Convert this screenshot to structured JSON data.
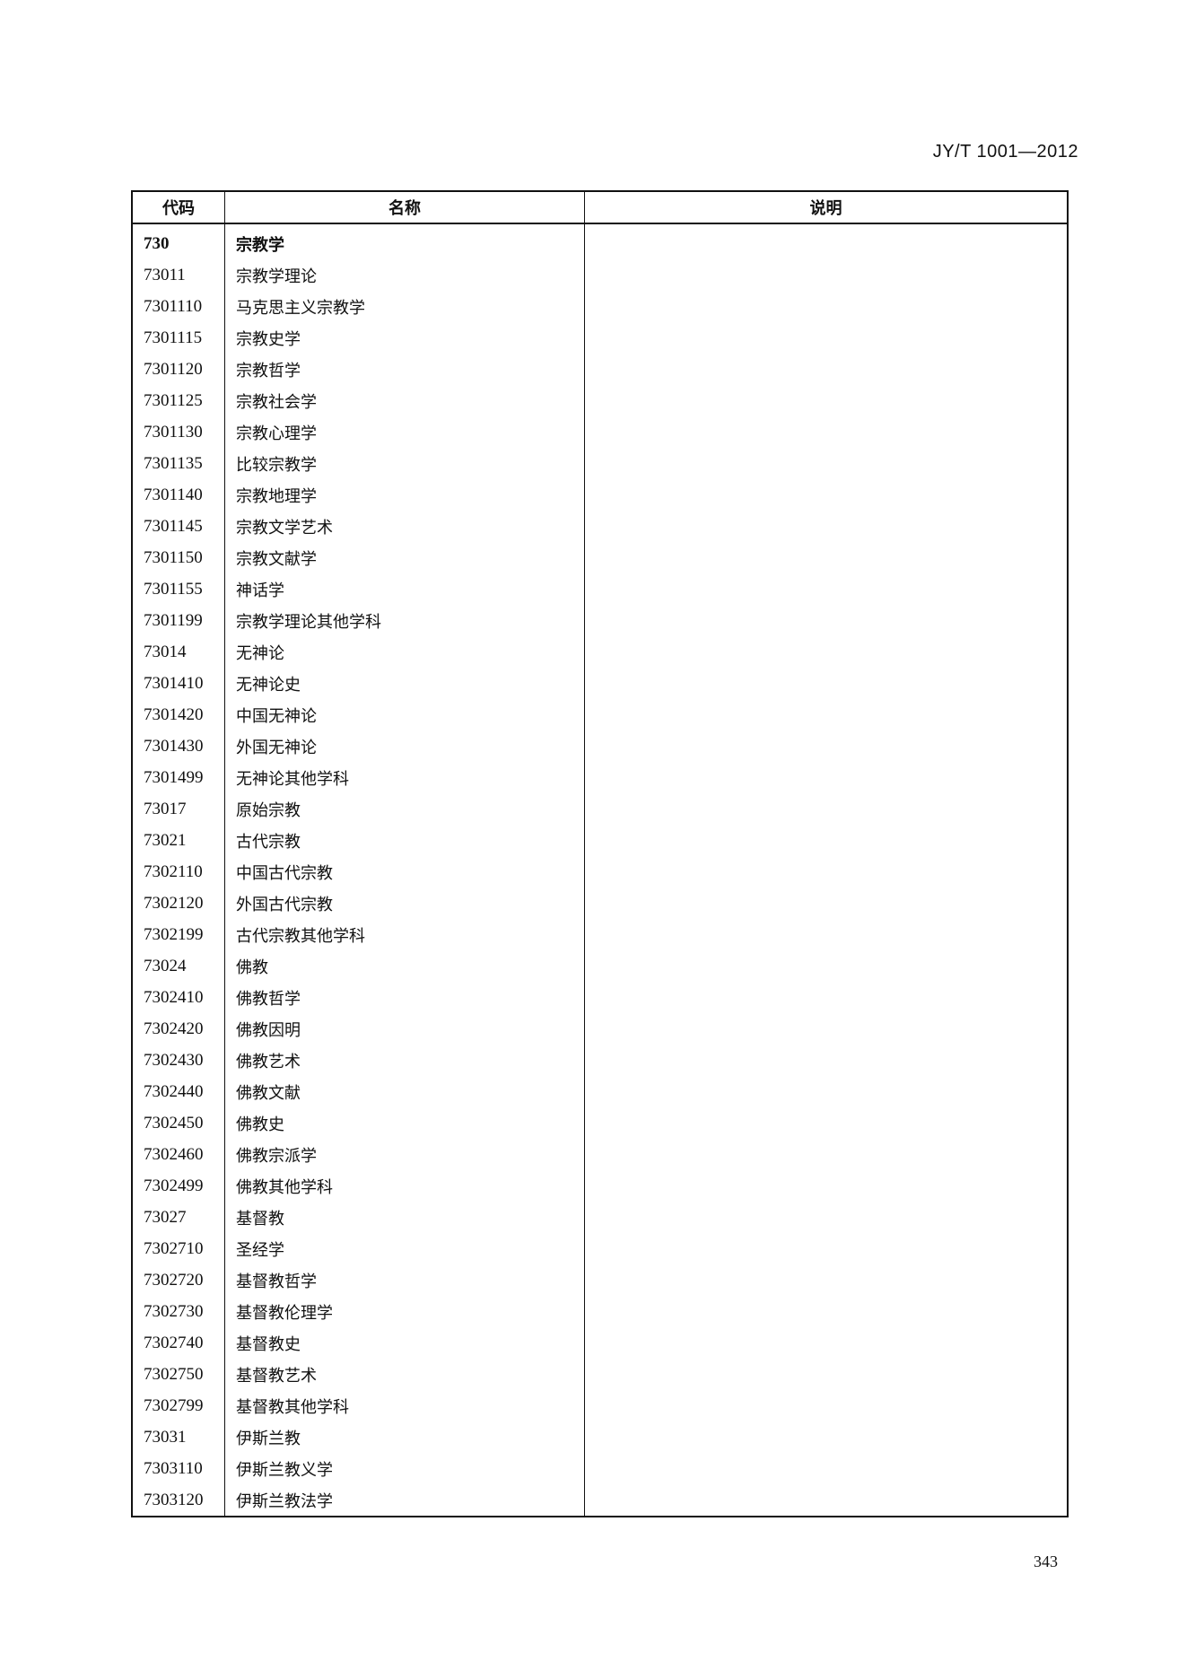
{
  "header": {
    "standard_number": "JY/T 1001—2012"
  },
  "table": {
    "columns": [
      "代码",
      "名称",
      "说明"
    ],
    "rows": [
      {
        "code": "730",
        "name": "宗教学",
        "note": "",
        "bold": true
      },
      {
        "code": "73011",
        "name": "宗教学理论",
        "note": ""
      },
      {
        "code": "7301110",
        "name": "马克思主义宗教学",
        "note": ""
      },
      {
        "code": "7301115",
        "name": "宗教史学",
        "note": ""
      },
      {
        "code": "7301120",
        "name": "宗教哲学",
        "note": ""
      },
      {
        "code": "7301125",
        "name": "宗教社会学",
        "note": ""
      },
      {
        "code": "7301130",
        "name": "宗教心理学",
        "note": ""
      },
      {
        "code": "7301135",
        "name": "比较宗教学",
        "note": ""
      },
      {
        "code": "7301140",
        "name": "宗教地理学",
        "note": ""
      },
      {
        "code": "7301145",
        "name": "宗教文学艺术",
        "note": ""
      },
      {
        "code": "7301150",
        "name": "宗教文献学",
        "note": ""
      },
      {
        "code": "7301155",
        "name": "神话学",
        "note": ""
      },
      {
        "code": "7301199",
        "name": "宗教学理论其他学科",
        "note": ""
      },
      {
        "code": "73014",
        "name": "无神论",
        "note": ""
      },
      {
        "code": "7301410",
        "name": "无神论史",
        "note": ""
      },
      {
        "code": "7301420",
        "name": "中国无神论",
        "note": ""
      },
      {
        "code": "7301430",
        "name": "外国无神论",
        "note": ""
      },
      {
        "code": "7301499",
        "name": "无神论其他学科",
        "note": ""
      },
      {
        "code": "73017",
        "name": "原始宗教",
        "note": ""
      },
      {
        "code": "73021",
        "name": "古代宗教",
        "note": ""
      },
      {
        "code": "7302110",
        "name": "中国古代宗教",
        "note": ""
      },
      {
        "code": "7302120",
        "name": "外国古代宗教",
        "note": ""
      },
      {
        "code": "7302199",
        "name": "古代宗教其他学科",
        "note": ""
      },
      {
        "code": "73024",
        "name": "佛教",
        "note": ""
      },
      {
        "code": "7302410",
        "name": "佛教哲学",
        "note": ""
      },
      {
        "code": "7302420",
        "name": "佛教因明",
        "note": ""
      },
      {
        "code": "7302430",
        "name": "佛教艺术",
        "note": ""
      },
      {
        "code": "7302440",
        "name": "佛教文献",
        "note": ""
      },
      {
        "code": "7302450",
        "name": "佛教史",
        "note": ""
      },
      {
        "code": "7302460",
        "name": "佛教宗派学",
        "note": ""
      },
      {
        "code": "7302499",
        "name": "佛教其他学科",
        "note": ""
      },
      {
        "code": "73027",
        "name": "基督教",
        "note": ""
      },
      {
        "code": "7302710",
        "name": "圣经学",
        "note": ""
      },
      {
        "code": "7302720",
        "name": "基督教哲学",
        "note": ""
      },
      {
        "code": "7302730",
        "name": "基督教伦理学",
        "note": ""
      },
      {
        "code": "7302740",
        "name": "基督教史",
        "note": ""
      },
      {
        "code": "7302750",
        "name": "基督教艺术",
        "note": ""
      },
      {
        "code": "7302799",
        "name": "基督教其他学科",
        "note": ""
      },
      {
        "code": "73031",
        "name": "伊斯兰教",
        "note": ""
      },
      {
        "code": "7303110",
        "name": "伊斯兰教义学",
        "note": ""
      },
      {
        "code": "7303120",
        "name": "伊斯兰教法学",
        "note": ""
      }
    ]
  },
  "footer": {
    "page_number": "343"
  }
}
